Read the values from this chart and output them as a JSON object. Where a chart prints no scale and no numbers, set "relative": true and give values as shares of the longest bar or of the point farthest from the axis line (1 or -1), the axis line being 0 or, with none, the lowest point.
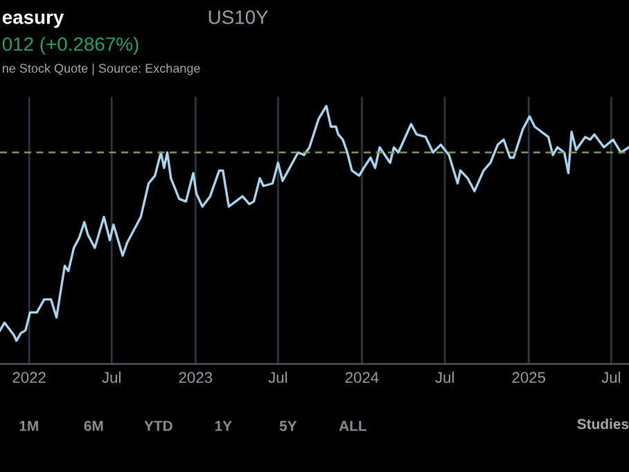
{
  "chart_data": {
    "type": "line",
    "title": "easury",
    "subtitle": "US10Y",
    "relative": true,
    "grid": "x",
    "legend": false,
    "marker": "none",
    "line_style": "solid",
    "annotations": [
      "012 (+0.2867%)",
      "ne Stock Quote | Source: Exchange",
      "1M",
      "6M",
      "YTD",
      "1Y",
      "5Y",
      "ALL",
      "Studies"
    ],
    "xlim": [
      "2021-10-29",
      "2025-08-09"
    ],
    "xticks": [
      {
        "value": "2022-01-01",
        "label": "2022"
      },
      {
        "value": "2022-07-01",
        "label": "Jul"
      },
      {
        "value": "2023-01-01",
        "label": "2023"
      },
      {
        "value": "2023-07-01",
        "label": "Jul"
      },
      {
        "value": "2024-01-01",
        "label": "2024"
      },
      {
        "value": "2024-07-01",
        "label": "Jul"
      },
      {
        "value": "2025-01-01",
        "label": "2025"
      },
      {
        "value": "2025-07-01",
        "label": "Jul"
      }
    ],
    "ref_lines": [
      {
        "axis": "y",
        "value": 0.82,
        "label": null,
        "color": "#7a9a5a",
        "line_style": "dashed"
      }
    ],
    "x": [
      "2021-10-29",
      "2021-11-08",
      "2021-11-29",
      "2021-12-04",
      "2021-12-14",
      "2021-12-24",
      "2022-01-03",
      "2022-01-18",
      "2022-02-03",
      "2022-02-18",
      "2022-03-02",
      "2022-03-10",
      "2022-03-20",
      "2022-03-28",
      "2022-04-09",
      "2022-04-21",
      "2022-05-02",
      "2022-05-10",
      "2022-05-25",
      "2022-06-14",
      "2022-06-27",
      "2022-07-05",
      "2022-07-25",
      "2022-08-04",
      "2022-08-19",
      "2022-09-03",
      "2022-09-20",
      "2022-10-04",
      "2022-10-17",
      "2022-10-24",
      "2022-10-31",
      "2022-11-08",
      "2022-11-26",
      "2022-12-11",
      "2022-12-27",
      "2023-01-03",
      "2023-01-16",
      "2023-02-02",
      "2023-02-22",
      "2023-03-02",
      "2023-03-15",
      "2023-03-30",
      "2023-04-14",
      "2023-04-29",
      "2023-05-09",
      "2023-05-22",
      "2023-05-30",
      "2023-06-19",
      "2023-07-01",
      "2023-07-11",
      "2023-08-14",
      "2023-08-27",
      "2023-09-08",
      "2023-09-28",
      "2023-10-15",
      "2023-10-25",
      "2023-11-05",
      "2023-11-10",
      "2023-11-20",
      "2023-11-30",
      "2023-12-10",
      "2023-12-26",
      "2024-01-05",
      "2024-01-20",
      "2024-01-30",
      "2024-02-09",
      "2024-03-03",
      "2024-03-11",
      "2024-03-21",
      "2024-04-18",
      "2024-04-30",
      "2024-05-20",
      "2024-06-05",
      "2024-06-22",
      "2024-07-10",
      "2024-07-29",
      "2024-08-04",
      "2024-08-20",
      "2024-09-04",
      "2024-09-24",
      "2024-10-09",
      "2024-10-25",
      "2024-11-07",
      "2024-11-21",
      "2024-11-29",
      "2024-12-19",
      "2025-01-03",
      "2025-01-14",
      "2025-02-13",
      "2025-02-23",
      "2025-03-05",
      "2025-03-20",
      "2025-03-29",
      "2025-04-05",
      "2025-04-15",
      "2025-05-05",
      "2025-05-16",
      "2025-05-25",
      "2025-06-15",
      "2025-07-05",
      "2025-07-22",
      "2025-08-09"
    ],
    "series": [
      {
        "color": "#a8d8f0",
        "values": [
          0.13,
          0.16,
          0.11,
          0.09,
          0.12,
          0.13,
          0.2,
          0.2,
          0.25,
          0.25,
          0.18,
          0.27,
          0.38,
          0.36,
          0.45,
          0.49,
          0.55,
          0.5,
          0.45,
          0.57,
          0.48,
          0.54,
          0.42,
          0.47,
          0.52,
          0.57,
          0.7,
          0.73,
          0.82,
          0.76,
          0.82,
          0.72,
          0.64,
          0.63,
          0.74,
          0.66,
          0.61,
          0.65,
          0.75,
          0.75,
          0.61,
          0.63,
          0.65,
          0.62,
          0.63,
          0.72,
          0.69,
          0.7,
          0.78,
          0.71,
          0.82,
          0.81,
          0.84,
          0.95,
          1.0,
          0.92,
          0.92,
          0.89,
          0.87,
          0.82,
          0.75,
          0.73,
          0.76,
          0.8,
          0.76,
          0.84,
          0.78,
          0.84,
          0.82,
          0.93,
          0.89,
          0.88,
          0.82,
          0.85,
          0.81,
          0.7,
          0.75,
          0.72,
          0.67,
          0.75,
          0.78,
          0.85,
          0.87,
          0.8,
          0.8,
          0.91,
          0.96,
          0.92,
          0.88,
          0.81,
          0.84,
          0.82,
          0.74,
          0.9,
          0.83,
          0.88,
          0.87,
          0.89,
          0.84,
          0.87,
          0.82,
          0.84
        ]
      }
    ]
  }
}
